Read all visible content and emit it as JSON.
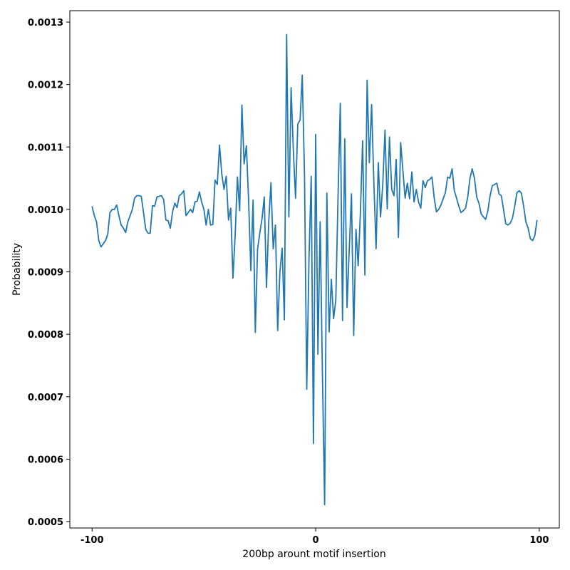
{
  "chart_data": {
    "type": "line",
    "x_label": "200bp arount motif insertion",
    "y_label": "Probability",
    "x": [
      -100,
      -99,
      -98,
      -97,
      -96,
      -95,
      -94,
      -93,
      -92,
      -91,
      -90,
      -89,
      -88,
      -87,
      -86,
      -85,
      -84,
      -83,
      -82,
      -81,
      -80,
      -79,
      -78,
      -77,
      -76,
      -75,
      -74,
      -73,
      -72,
      -71,
      -70,
      -69,
      -68,
      -67,
      -66,
      -65,
      -64,
      -63,
      -62,
      -61,
      -60,
      -59,
      -58,
      -57,
      -56,
      -55,
      -54,
      -53,
      -52,
      -51,
      -50,
      -49,
      -48,
      -47,
      -46,
      -45,
      -44,
      -43,
      -42,
      -41,
      -40,
      -39,
      -38,
      -37,
      -36,
      -35,
      -34,
      -33,
      -32,
      -31,
      -30,
      -29,
      -28,
      -27,
      -26,
      -25,
      -24,
      -23,
      -22,
      -21,
      -20,
      -19,
      -18,
      -17,
      -16,
      -15,
      -14,
      -13,
      -12,
      -11,
      -10,
      -9,
      -8,
      -7,
      -6,
      -5,
      -4,
      -3,
      -2,
      -1,
      0,
      1,
      2,
      3,
      4,
      5,
      6,
      7,
      8,
      9,
      10,
      11,
      12,
      13,
      14,
      15,
      16,
      17,
      18,
      19,
      20,
      21,
      22,
      23,
      24,
      25,
      26,
      27,
      28,
      29,
      30,
      31,
      32,
      33,
      34,
      35,
      36,
      37,
      38,
      39,
      40,
      41,
      42,
      43,
      44,
      45,
      46,
      47,
      48,
      49,
      50,
      51,
      52,
      53,
      54,
      55,
      56,
      57,
      58,
      59,
      60,
      61,
      62,
      63,
      64,
      65,
      66,
      67,
      68,
      69,
      70,
      71,
      72,
      73,
      74,
      75,
      76,
      77,
      78,
      79,
      80,
      81,
      82,
      83,
      84,
      85,
      86,
      87,
      88,
      89,
      90,
      91,
      92,
      93,
      94,
      95,
      96,
      97,
      98,
      99
    ],
    "series": [
      {
        "color": "#1f77b4",
        "values": [
          0.001005,
          0.00099,
          0.00098,
          0.00095,
          0.00094,
          0.000945,
          0.00095,
          0.00096,
          0.000995,
          0.001,
          0.001,
          0.001007,
          0.00099,
          0.000975,
          0.00097,
          0.000963,
          0.00098,
          0.00099,
          0.001,
          0.001018,
          0.001022,
          0.001022,
          0.001021,
          0.000995,
          0.000968,
          0.000962,
          0.000962,
          0.001006,
          0.001005,
          0.00102,
          0.001021,
          0.001022,
          0.001016,
          0.000983,
          0.000982,
          0.00097,
          0.000996,
          0.00101,
          0.001003,
          0.001022,
          0.001025,
          0.00103,
          0.00099,
          0.000995,
          0.001,
          0.000995,
          0.001012,
          0.001013,
          0.001028,
          0.001012,
          0.001,
          0.000975,
          0.001,
          0.000975,
          0.000976,
          0.001047,
          0.00104,
          0.001103,
          0.001057,
          0.001032,
          0.001053,
          0.000983,
          0.001002,
          0.00089,
          0.00096,
          0.001052,
          0.000998,
          0.001167,
          0.001073,
          0.001102,
          0.001015,
          0.000902,
          0.001015,
          0.000803,
          0.000936,
          0.000962,
          0.000985,
          0.00102,
          0.000875,
          0.00098,
          0.001043,
          0.000937,
          0.000975,
          0.000806,
          0.0009,
          0.000938,
          0.000823,
          0.00128,
          0.000988,
          0.001195,
          0.001095,
          0.001018,
          0.001137,
          0.001143,
          0.001215,
          0.001055,
          0.000712,
          0.00092,
          0.001053,
          0.000625,
          0.00112,
          0.000768,
          0.00098,
          0.00074,
          0.000527,
          0.001026,
          0.000804,
          0.000888,
          0.000825,
          0.000855,
          0.00102,
          0.00117,
          0.000822,
          0.001113,
          0.000843,
          0.000935,
          0.001025,
          0.000798,
          0.000968,
          0.00091,
          0.000995,
          0.00111,
          0.000895,
          0.001207,
          0.001075,
          0.001168,
          0.001045,
          0.000937,
          0.001075,
          0.000988,
          0.00104,
          0.001127,
          0.001001,
          0.001116,
          0.001032,
          0.001022,
          0.00108,
          0.000955,
          0.001107,
          0.001062,
          0.001018,
          0.001042,
          0.001017,
          0.00106,
          0.001012,
          0.001032,
          0.001012,
          0.001002,
          0.001046,
          0.001035,
          0.001046,
          0.001048,
          0.001052,
          0.001018,
          0.000996,
          0.001,
          0.001007,
          0.001017,
          0.001027,
          0.001052,
          0.00105,
          0.001065,
          0.00103,
          0.001018,
          0.001005,
          0.000995,
          0.000998,
          0.001002,
          0.00102,
          0.00105,
          0.001065,
          0.00105,
          0.00102,
          0.00101,
          0.000993,
          0.000988,
          0.000984,
          0.000998,
          0.001022,
          0.001038,
          0.00104,
          0.001042,
          0.001025,
          0.001022,
          0.001,
          0.000977,
          0.000975,
          0.000978,
          0.000986,
          0.001005,
          0.001027,
          0.00103,
          0.001026,
          0.001005,
          0.00098,
          0.00097,
          0.000953,
          0.00095,
          0.000958,
          0.000983
        ]
      }
    ],
    "xlim": [
      -109.95,
      108.95
    ],
    "xticks": [
      -100,
      0,
      100
    ],
    "ylim": [
      0.0004898,
      0.0013183
    ],
    "yticks": [
      0.0005,
      0.0006,
      0.0007,
      0.0008,
      0.0009,
      {
        "value": 0.001,
        "label": "0.0010"
      },
      0.0011,
      0.0012,
      0.0013
    ]
  }
}
